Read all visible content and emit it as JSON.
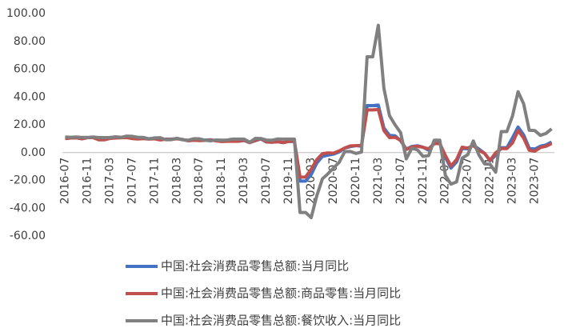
{
  "chart_data": {
    "type": "line",
    "categories": [
      "2016-07",
      null,
      null,
      null,
      "2016-11",
      null,
      null,
      null,
      "2017-03",
      null,
      null,
      null,
      "2017-07",
      null,
      null,
      null,
      "2017-11",
      null,
      null,
      null,
      "2018-03",
      null,
      null,
      null,
      "2018-07",
      null,
      null,
      null,
      "2018-11",
      null,
      null,
      null,
      "2019-03",
      null,
      null,
      null,
      "2019-07",
      null,
      null,
      null,
      "2019-11",
      null,
      null,
      null,
      "2020-03",
      null,
      null,
      null,
      "2020-07",
      null,
      null,
      null,
      "2020-11",
      null,
      null,
      null,
      "2021-03",
      null,
      null,
      null,
      "2021-07",
      null,
      null,
      null,
      "2021-11",
      null,
      null,
      null,
      "2022-03",
      null,
      null,
      null,
      "2022-07",
      null,
      null,
      null,
      "2022-11",
      null,
      null,
      null,
      "2023-03",
      null,
      null,
      null,
      "2023-07",
      null,
      null,
      null
    ],
    "series": [
      {
        "name": "中国:社会消费品零售总额:当月同比",
        "color": "#4472c4",
        "values": [
          10.2,
          10.6,
          10.7,
          10.0,
          10.8,
          10.9,
          9.5,
          9.5,
          10.9,
          10.7,
          10.7,
          11.0,
          10.4,
          10.1,
          10.3,
          10.0,
          10.2,
          9.4,
          9.7,
          9.7,
          10.1,
          9.4,
          8.5,
          9.0,
          8.8,
          9.0,
          9.2,
          8.6,
          8.1,
          8.2,
          8.2,
          8.2,
          8.7,
          7.2,
          8.6,
          9.8,
          7.6,
          7.5,
          7.8,
          7.2,
          8.0,
          8.0,
          -20.5,
          -20.5,
          -15.8,
          -7.5,
          -2.8,
          -1.8,
          -1.1,
          0.5,
          3.3,
          4.3,
          5.0,
          4.6,
          33.8,
          33.8,
          34.2,
          17.7,
          12.4,
          12.1,
          8.5,
          2.5,
          4.4,
          4.9,
          3.9,
          1.7,
          6.7,
          6.7,
          -3.5,
          -11.1,
          -6.7,
          3.1,
          2.7,
          5.4,
          2.5,
          -0.5,
          -5.9,
          -1.8,
          3.5,
          3.5,
          10.6,
          18.4,
          12.7,
          3.1,
          2.5,
          4.6,
          5.5,
          7.6
        ]
      },
      {
        "name": "中国:社会消费品零售总额:商品零售:当月同比",
        "color": "#c0504d",
        "values": [
          10.1,
          10.5,
          10.6,
          9.9,
          10.8,
          10.8,
          9.2,
          9.2,
          10.2,
          10.5,
          10.7,
          10.8,
          10.1,
          9.8,
          10.1,
          9.7,
          9.9,
          9.1,
          9.6,
          9.6,
          9.9,
          9.4,
          8.5,
          8.9,
          8.6,
          8.8,
          9.1,
          8.4,
          8.0,
          8.1,
          8.1,
          8.1,
          8.9,
          7.2,
          8.7,
          10.1,
          7.7,
          7.5,
          7.9,
          7.2,
          8.1,
          8.1,
          -17.6,
          -17.6,
          -12.0,
          -5.1,
          -0.8,
          -0.2,
          -0.4,
          1.2,
          3.3,
          4.8,
          5.0,
          5.2,
          30.7,
          30.7,
          31.0,
          15.9,
          10.8,
          11.0,
          8.9,
          2.3,
          4.0,
          4.6,
          3.8,
          2.7,
          6.5,
          6.5,
          -2.1,
          -9.7,
          -5.0,
          3.9,
          3.2,
          5.1,
          1.5,
          -0.5,
          -5.6,
          -0.1,
          2.9,
          2.9,
          6.9,
          15.9,
          10.5,
          1.7,
          1.0,
          3.7,
          4.6,
          6.5
        ]
      },
      {
        "name": "中国:社会消费品零售总额:餐饮收入:当月同比",
        "color": "#808080",
        "values": [
          11.2,
          11.0,
          11.2,
          10.9,
          10.9,
          11.2,
          10.8,
          10.8,
          10.8,
          11.4,
          11.0,
          11.9,
          11.7,
          11.0,
          10.9,
          9.8,
          10.6,
          10.7,
          9.3,
          9.3,
          10.3,
          9.2,
          8.9,
          10.0,
          9.9,
          8.9,
          8.5,
          9.1,
          8.9,
          9.1,
          9.7,
          9.7,
          9.7,
          7.4,
          10.2,
          10.1,
          9.0,
          8.9,
          9.8,
          9.7,
          9.7,
          9.7,
          -43.1,
          -43.1,
          -46.8,
          -31.1,
          -18.9,
          -15.2,
          -11.0,
          -7.0,
          0.7,
          0.8,
          -0.6,
          0.4,
          68.9,
          68.9,
          91.6,
          46.4,
          26.6,
          20.0,
          14.3,
          -4.5,
          3.1,
          2.0,
          -2.7,
          -2.2,
          8.9,
          8.9,
          -16.4,
          -22.7,
          -21.1,
          -4.0,
          -1.5,
          8.4,
          -1.7,
          -8.1,
          -8.4,
          -14.1,
          15.1,
          15.1,
          26.3,
          43.8,
          35.1,
          16.1,
          15.8,
          12.4,
          13.8,
          17.1
        ]
      }
    ],
    "ylim": [
      -60,
      100
    ],
    "yticks": [
      {
        "value": -60,
        "label": "-60.00"
      },
      {
        "value": -40,
        "label": "-40.00"
      },
      {
        "value": -20,
        "label": "-20.00"
      },
      {
        "value": 0,
        "label": "0.00"
      },
      {
        "value": 20,
        "label": "20.00"
      },
      {
        "value": 40,
        "label": "40.00"
      },
      {
        "value": 60,
        "label": "60.00"
      },
      {
        "value": 80,
        "label": "80.00"
      },
      {
        "value": 100,
        "label": "100.00"
      }
    ],
    "grid": false
  }
}
